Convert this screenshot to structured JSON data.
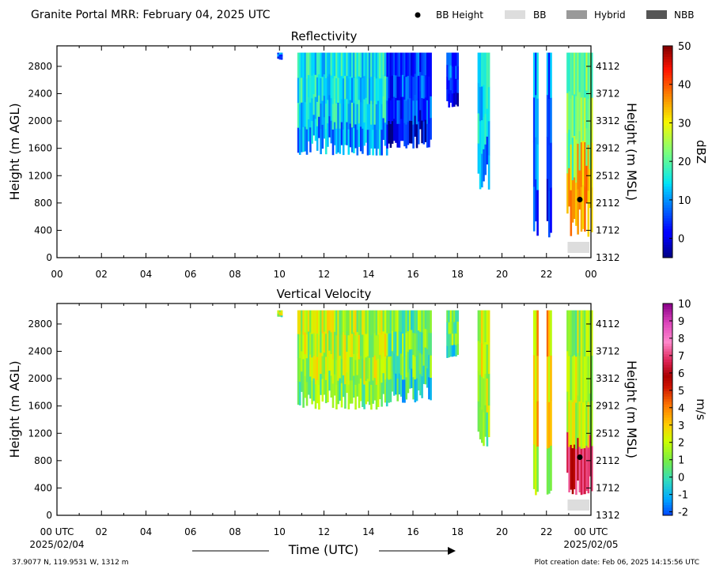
{
  "header": {
    "title": "Granite Portal MRR:  February 04, 2025 UTC",
    "legend": [
      {
        "label": "BB Height",
        "marker": "dot",
        "color": "#000000"
      },
      {
        "label": "BB",
        "marker": "bar",
        "color": "#dddddd"
      },
      {
        "label": "Hybrid",
        "marker": "bar",
        "color": "#999999"
      },
      {
        "label": "NBB",
        "marker": "bar",
        "color": "#555555"
      }
    ]
  },
  "footer": {
    "coords": "37.9077 N, 119.9531 W, 1312 m",
    "creation": "Plot creation date: Feb 06, 2025 14:15:56 UTC",
    "xlabel": "Time (UTC)",
    "start_date": "2025/02/04",
    "end_date": "2025/02/05"
  },
  "chart_data": [
    {
      "type": "heatmap",
      "title": "Reflectivity",
      "ylabel": "Height (m AGL)",
      "ylabel_right": "Height (m MSL)",
      "x_ticks": [
        "00",
        "02",
        "04",
        "06",
        "08",
        "10",
        "12",
        "14",
        "16",
        "18",
        "20",
        "22",
        "00"
      ],
      "xlim": [
        0,
        24
      ],
      "ylim": [
        0,
        3100
      ],
      "y_ticks": [
        0,
        400,
        800,
        1200,
        1600,
        2000,
        2400,
        2800
      ],
      "y_ticks_right": [
        "1312",
        "1712",
        "2112",
        "2512",
        "2912",
        "3312",
        "3712",
        "4112"
      ],
      "colorbar": {
        "label": "dBZ",
        "ticks": [
          "0",
          "10",
          "20",
          "30",
          "40",
          "50"
        ],
        "range": [
          -5,
          50
        ],
        "colormap": "jet"
      },
      "echo_regions": [
        {
          "start_hour": 9.9,
          "end_hour": 10.1,
          "base_m": 2900,
          "top_m": 3000,
          "value_dbz": 8
        },
        {
          "start_hour": 10.8,
          "end_hour": 14.8,
          "base_m": 1500,
          "top_m": 3000,
          "value_dbz": 15
        },
        {
          "start_hour": 14.8,
          "end_hour": 16.8,
          "base_m": 1600,
          "top_m": 3000,
          "value_dbz": 5
        },
        {
          "start_hour": 17.5,
          "end_hour": 18.0,
          "base_m": 2200,
          "top_m": 3000,
          "value_dbz": 6
        },
        {
          "start_hour": 18.9,
          "end_hour": 19.4,
          "base_m": 1000,
          "top_m": 3000,
          "value_dbz": 14
        },
        {
          "start_hour": 21.4,
          "end_hour": 21.6,
          "base_m": 300,
          "top_m": 3000,
          "value_dbz": 10
        },
        {
          "start_hour": 22.0,
          "end_hour": 22.2,
          "base_m": 300,
          "top_m": 3000,
          "value_dbz": 8
        },
        {
          "start_hour": 22.9,
          "end_hour": 24.0,
          "base_m": 300,
          "top_m": 3000,
          "value_dbz": 22
        }
      ],
      "bright_band": {
        "hour": 23.5,
        "height_m": 850,
        "type": "BB",
        "start_hour": 22.95,
        "end_hour": 24.0
      }
    },
    {
      "type": "heatmap",
      "title": "Vertical Velocity",
      "ylabel": "Height (m AGL)",
      "ylabel_right": "Height (m MSL)",
      "x_ticks": [
        "00 UTC",
        "02",
        "04",
        "06",
        "08",
        "10",
        "12",
        "14",
        "16",
        "18",
        "20",
        "22",
        "00 UTC"
      ],
      "xlim": [
        0,
        24
      ],
      "ylim": [
        0,
        3100
      ],
      "y_ticks": [
        0,
        400,
        800,
        1200,
        1600,
        2000,
        2400,
        2800
      ],
      "y_ticks_right": [
        "1312",
        "1712",
        "2112",
        "2512",
        "2912",
        "3312",
        "3712",
        "4112"
      ],
      "colorbar": {
        "label": "m/s",
        "ticks": [
          "-2",
          "-1",
          "0",
          "1",
          "2",
          "3",
          "4",
          "5",
          "6",
          "7",
          "8",
          "9",
          "10"
        ],
        "range": [
          -2.2,
          10
        ],
        "colormap": "velocity"
      },
      "echo_regions": [
        {
          "start_hour": 9.9,
          "end_hour": 10.1,
          "base_m": 2900,
          "top_m": 3000,
          "value_ms": 2
        },
        {
          "start_hour": 10.8,
          "end_hour": 14.8,
          "base_m": 1550,
          "top_m": 3000,
          "value_ms": 1.8
        },
        {
          "start_hour": 14.8,
          "end_hour": 16.8,
          "base_m": 1650,
          "top_m": 3000,
          "value_ms": 0.8
        },
        {
          "start_hour": 17.5,
          "end_hour": 18.0,
          "base_m": 2300,
          "top_m": 3000,
          "value_ms": 1
        },
        {
          "start_hour": 18.9,
          "end_hour": 19.4,
          "base_m": 1000,
          "top_m": 3000,
          "value_ms": 2
        },
        {
          "start_hour": 21.4,
          "end_hour": 21.6,
          "base_m": 300,
          "top_m": 3000,
          "value_ms": 3
        },
        {
          "start_hour": 22.0,
          "end_hour": 22.2,
          "base_m": 300,
          "top_m": 3000,
          "value_ms": 3
        },
        {
          "start_hour": 22.9,
          "end_hour": 24.0,
          "base_m": 300,
          "top_m": 3000,
          "value_ms": 1.5
        }
      ],
      "bright_band": {
        "hour": 23.5,
        "height_m": 850,
        "type": "BB",
        "start_hour": 22.95,
        "end_hour": 24.0
      }
    }
  ]
}
